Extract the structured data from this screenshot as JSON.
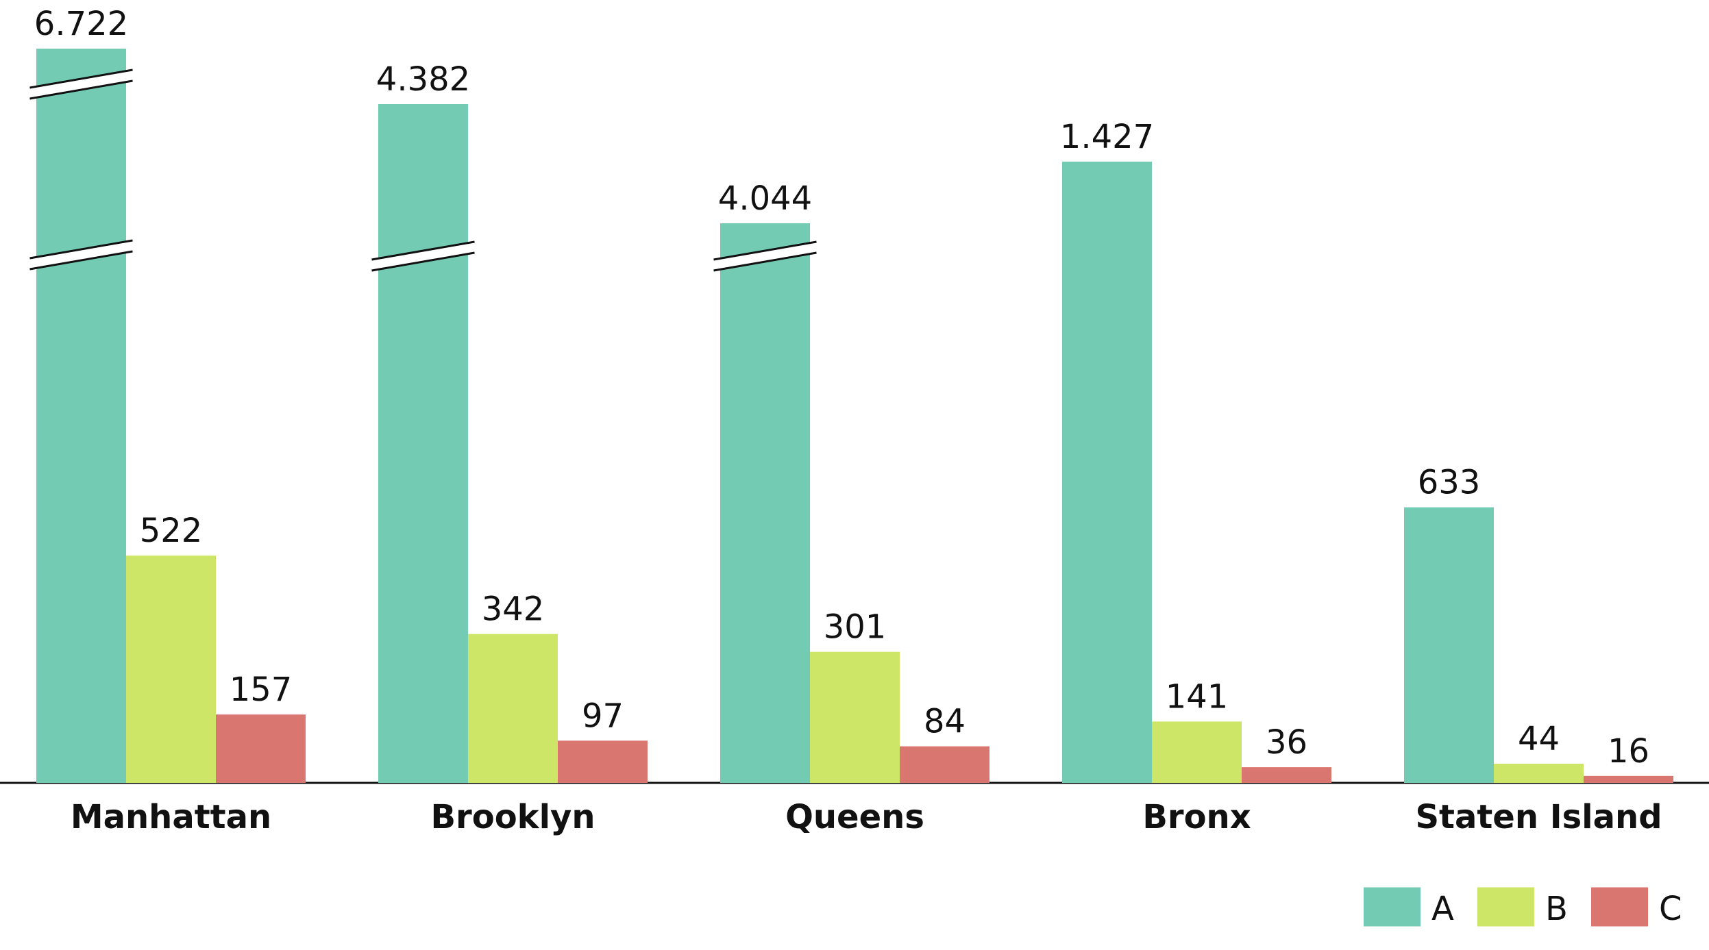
{
  "chart_data": {
    "type": "bar",
    "categories": [
      "Manhattan",
      "Brooklyn",
      "Queens",
      "Bronx",
      "Staten Island"
    ],
    "series": [
      {
        "name": "A",
        "color": "#73cbb3",
        "values": [
          6722,
          4382,
          4044,
          1427,
          633
        ],
        "labels": [
          "6.722",
          "4.382",
          "4.044",
          "1.427",
          "633"
        ]
      },
      {
        "name": "B",
        "color": "#cde668",
        "values": [
          522,
          342,
          301,
          141,
          44
        ],
        "labels": [
          "522",
          "342",
          "301",
          "141",
          "44"
        ]
      },
      {
        "name": "C",
        "color": "#d97670",
        "values": [
          157,
          97,
          84,
          36,
          16
        ],
        "labels": [
          "157",
          "97",
          "84",
          "36",
          "16"
        ]
      }
    ],
    "axis_breaks": {
      "description": "Series A bars use broken axis marks",
      "breaks_per_category": [
        2,
        2,
        1,
        0,
        0
      ]
    },
    "grid": false,
    "legend_position": "bottom-right",
    "title": "",
    "xlabel": "",
    "ylabel": ""
  }
}
